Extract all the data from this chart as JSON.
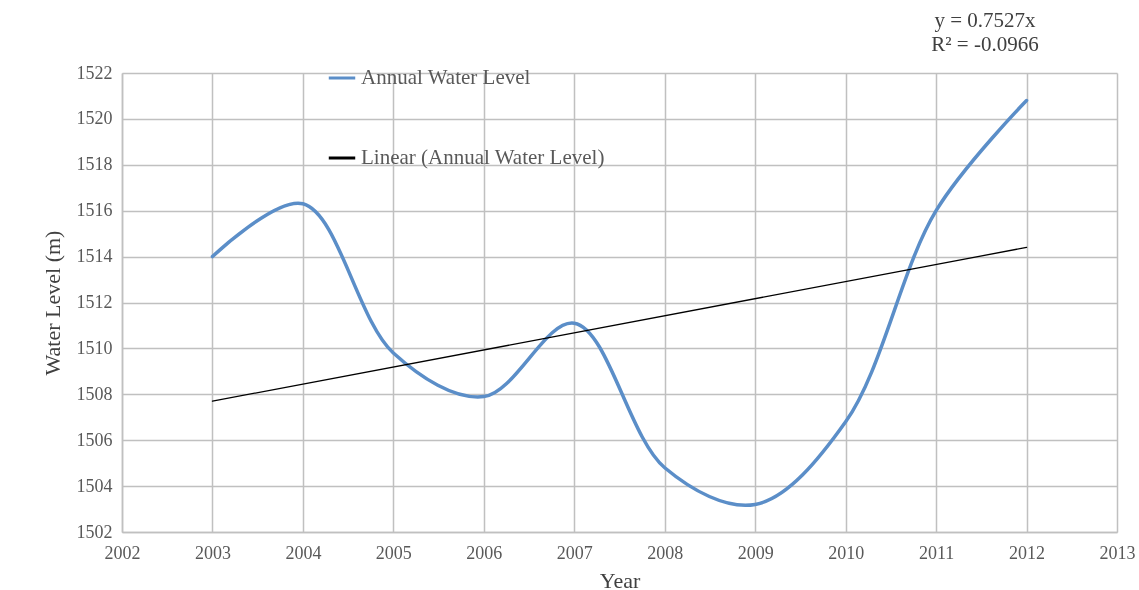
{
  "chart_data": {
    "type": "line",
    "xlabel": "Year",
    "ylabel": "Water Level (m)",
    "x": [
      2003,
      2004,
      2005,
      2006,
      2007,
      2008,
      2009,
      2010,
      2011,
      2012
    ],
    "series": [
      {
        "name": "Annual Water Level",
        "color": "#5b8ec8",
        "values": [
          1514.0,
          1516.3,
          1509.8,
          1507.9,
          1511.1,
          1504.8,
          1503.2,
          1506.8,
          1516.0,
          1520.8
        ]
      },
      {
        "name": "Linear (Annual Water Level)",
        "color": "#000000",
        "x": [
          2003,
          2012
        ],
        "values": [
          1507.7,
          1514.4
        ]
      }
    ],
    "xlim": [
      2002,
      2013
    ],
    "xticks": [
      2002,
      2003,
      2004,
      2005,
      2006,
      2007,
      2008,
      2009,
      2010,
      2011,
      2012,
      2013
    ],
    "ylim": [
      1502,
      1522
    ],
    "yticks": [
      1502,
      1504,
      1506,
      1508,
      1510,
      1512,
      1514,
      1516,
      1518,
      1520,
      1522
    ],
    "grid": true,
    "legend": "top left",
    "annotations": [
      "y = 0.7527x",
      "R² = -0.0966"
    ]
  }
}
